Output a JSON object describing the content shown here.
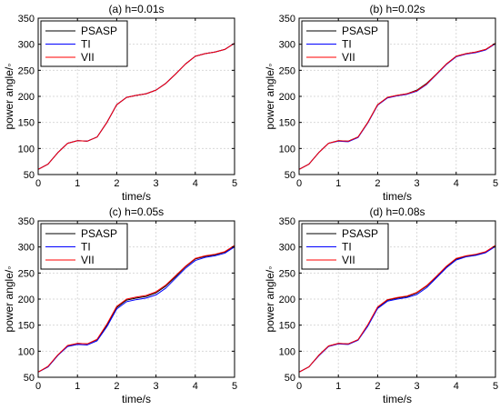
{
  "chart_data": [
    {
      "type": "line",
      "title": "(a) h=0.01s",
      "xlabel": "time/s",
      "ylabel": "power angle/◦",
      "xlim": [
        0,
        5
      ],
      "ylim": [
        50,
        350
      ],
      "xticks": [
        0,
        1,
        2,
        3,
        4,
        5
      ],
      "yticks": [
        50,
        100,
        150,
        200,
        250,
        300,
        350
      ],
      "grid": true,
      "legend_position": "top-left",
      "series": [
        {
          "name": "PSASP",
          "color": "#000000",
          "x": [
            0,
            0.25,
            0.5,
            0.75,
            1.0,
            1.25,
            1.5,
            1.75,
            2.0,
            2.25,
            2.5,
            2.75,
            3.0,
            3.25,
            3.5,
            3.75,
            4.0,
            4.25,
            4.5,
            4.75,
            5.0
          ],
          "y": [
            60,
            70,
            92,
            110,
            115,
            114,
            122,
            150,
            184,
            198,
            202,
            205,
            212,
            225,
            243,
            262,
            277,
            282,
            285,
            290,
            302
          ]
        },
        {
          "name": "TI",
          "color": "#0000ff",
          "x": [
            0,
            0.25,
            0.5,
            0.75,
            1.0,
            1.25,
            1.5,
            1.75,
            2.0,
            2.25,
            2.5,
            2.75,
            3.0,
            3.25,
            3.5,
            3.75,
            4.0,
            4.25,
            4.5,
            4.75,
            5.0
          ],
          "y": [
            60,
            70,
            92,
            110,
            115,
            114,
            122,
            150,
            184,
            198,
            202,
            205,
            212,
            225,
            243,
            262,
            277,
            282,
            285,
            290,
            302
          ]
        },
        {
          "name": "VII",
          "color": "#ff0000",
          "x": [
            0,
            0.25,
            0.5,
            0.75,
            1.0,
            1.25,
            1.5,
            1.75,
            2.0,
            2.25,
            2.5,
            2.75,
            3.0,
            3.25,
            3.5,
            3.75,
            4.0,
            4.25,
            4.5,
            4.75,
            5.0
          ],
          "y": [
            60,
            70,
            92,
            110,
            115,
            114,
            122,
            150,
            184,
            198,
            202,
            205,
            212,
            225,
            243,
            262,
            277,
            282,
            285,
            290,
            302
          ]
        }
      ]
    },
    {
      "type": "line",
      "title": "(b) h=0.02s",
      "xlabel": "time/s",
      "ylabel": "power angle/◦",
      "xlim": [
        0,
        5
      ],
      "ylim": [
        50,
        350
      ],
      "xticks": [
        0,
        1,
        2,
        3,
        4,
        5
      ],
      "yticks": [
        50,
        100,
        150,
        200,
        250,
        300,
        350
      ],
      "grid": true,
      "legend_position": "top-left",
      "series": [
        {
          "name": "PSASP",
          "color": "#000000",
          "x": [
            0,
            0.25,
            0.5,
            0.75,
            1.0,
            1.25,
            1.5,
            1.75,
            2.0,
            2.25,
            2.5,
            2.75,
            3.0,
            3.25,
            3.5,
            3.75,
            4.0,
            4.25,
            4.5,
            4.75,
            5.0
          ],
          "y": [
            60,
            70,
            92,
            110,
            115,
            114,
            122,
            150,
            184,
            198,
            202,
            205,
            212,
            225,
            243,
            262,
            277,
            282,
            285,
            290,
            302
          ]
        },
        {
          "name": "TI",
          "color": "#0000ff",
          "x": [
            0,
            0.25,
            0.5,
            0.75,
            1.0,
            1.25,
            1.5,
            1.75,
            2.0,
            2.25,
            2.5,
            2.75,
            3.0,
            3.25,
            3.5,
            3.75,
            4.0,
            4.25,
            4.5,
            4.75,
            5.0
          ],
          "y": [
            60,
            70,
            92,
            110,
            114,
            113,
            121,
            149,
            183,
            197,
            201,
            204,
            210,
            223,
            242,
            261,
            276,
            281,
            284,
            289,
            301
          ]
        },
        {
          "name": "VII",
          "color": "#ff0000",
          "x": [
            0,
            0.25,
            0.5,
            0.75,
            1.0,
            1.25,
            1.5,
            1.75,
            2.0,
            2.25,
            2.5,
            2.75,
            3.0,
            3.25,
            3.5,
            3.75,
            4.0,
            4.25,
            4.5,
            4.75,
            5.0
          ],
          "y": [
            60,
            70,
            92,
            110,
            115,
            114,
            122,
            150,
            184,
            198,
            202,
            205,
            211,
            224,
            243,
            262,
            277,
            282,
            285,
            290,
            302
          ]
        }
      ]
    },
    {
      "type": "line",
      "title": "(c) h=0.05s",
      "xlabel": "time/s",
      "ylabel": "power angle/◦",
      "xlim": [
        0,
        5
      ],
      "ylim": [
        50,
        350
      ],
      "xticks": [
        0,
        1,
        2,
        3,
        4,
        5
      ],
      "yticks": [
        50,
        100,
        150,
        200,
        250,
        300,
        350
      ],
      "grid": true,
      "legend_position": "top-left",
      "series": [
        {
          "name": "PSASP",
          "color": "#000000",
          "x": [
            0,
            0.25,
            0.5,
            0.75,
            1.0,
            1.25,
            1.5,
            1.75,
            2.0,
            2.25,
            2.5,
            2.75,
            3.0,
            3.25,
            3.5,
            3.75,
            4.0,
            4.25,
            4.5,
            4.75,
            5.0
          ],
          "y": [
            60,
            70,
            92,
            110,
            115,
            114,
            122,
            150,
            184,
            198,
            202,
            205,
            212,
            225,
            243,
            262,
            277,
            282,
            285,
            290,
            302
          ]
        },
        {
          "name": "TI",
          "color": "#0000ff",
          "x": [
            0,
            0.25,
            0.5,
            0.75,
            1.0,
            1.25,
            1.5,
            1.75,
            2.0,
            2.25,
            2.5,
            2.75,
            3.0,
            3.25,
            3.5,
            3.75,
            4.0,
            4.25,
            4.5,
            4.75,
            5.0
          ],
          "y": [
            60,
            70,
            92,
            109,
            113,
            112,
            120,
            147,
            181,
            195,
            199,
            202,
            208,
            221,
            240,
            259,
            274,
            280,
            283,
            288,
            300
          ]
        },
        {
          "name": "VII",
          "color": "#ff0000",
          "x": [
            0,
            0.25,
            0.5,
            0.75,
            1.0,
            1.25,
            1.5,
            1.75,
            2.0,
            2.25,
            2.5,
            2.75,
            3.0,
            3.25,
            3.5,
            3.75,
            4.0,
            4.25,
            4.5,
            4.75,
            5.0
          ],
          "y": [
            60,
            71,
            93,
            111,
            115,
            114,
            123,
            152,
            186,
            200,
            204,
            207,
            214,
            227,
            245,
            263,
            278,
            283,
            286,
            291,
            303
          ]
        }
      ]
    },
    {
      "type": "line",
      "title": "(d) h=0.08s",
      "xlabel": "time/s",
      "ylabel": "power angle/◦",
      "xlim": [
        0,
        5
      ],
      "ylim": [
        50,
        350
      ],
      "xticks": [
        0,
        1,
        2,
        3,
        4,
        5
      ],
      "yticks": [
        50,
        100,
        150,
        200,
        250,
        300,
        350
      ],
      "grid": true,
      "legend_position": "top-left",
      "series": [
        {
          "name": "PSASP",
          "color": "#000000",
          "x": [
            0,
            0.25,
            0.5,
            0.75,
            1.0,
            1.25,
            1.5,
            1.75,
            2.0,
            2.25,
            2.5,
            2.75,
            3.0,
            3.25,
            3.5,
            3.75,
            4.0,
            4.25,
            4.5,
            4.75,
            5.0
          ],
          "y": [
            60,
            70,
            92,
            110,
            115,
            114,
            122,
            150,
            184,
            198,
            202,
            205,
            212,
            225,
            243,
            262,
            277,
            282,
            285,
            290,
            302
          ]
        },
        {
          "name": "TI",
          "color": "#0000ff",
          "x": [
            0,
            0.25,
            0.5,
            0.75,
            1.0,
            1.25,
            1.5,
            1.75,
            2.0,
            2.25,
            2.5,
            2.75,
            3.0,
            3.25,
            3.5,
            3.75,
            4.0,
            4.25,
            4.5,
            4.75,
            5.0
          ],
          "y": [
            60,
            70,
            91,
            109,
            114,
            113,
            121,
            148,
            182,
            196,
            200,
            203,
            209,
            222,
            241,
            260,
            275,
            281,
            284,
            289,
            301
          ]
        },
        {
          "name": "VII",
          "color": "#ff0000",
          "x": [
            0,
            0.25,
            0.5,
            0.75,
            1.0,
            1.25,
            1.5,
            1.75,
            2.0,
            2.25,
            2.5,
            2.75,
            3.0,
            3.25,
            3.5,
            3.75,
            4.0,
            4.25,
            4.5,
            4.75,
            5.0
          ],
          "y": [
            60,
            70,
            92,
            110,
            115,
            114,
            122,
            151,
            185,
            199,
            203,
            206,
            213,
            226,
            244,
            263,
            278,
            283,
            286,
            291,
            303
          ]
        }
      ]
    }
  ]
}
